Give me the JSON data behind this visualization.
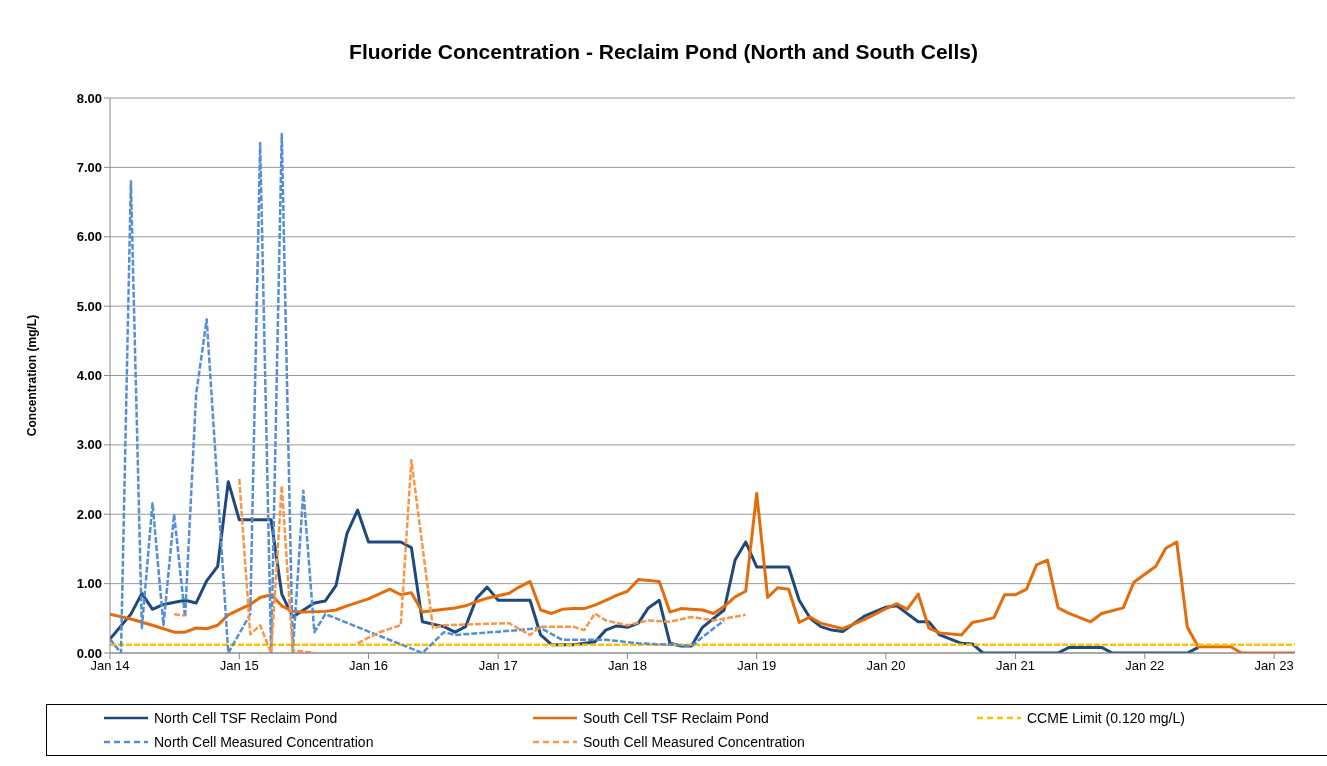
{
  "chart_data": {
    "type": "line",
    "title": "Fluoride Concentration - Reclaim Pond (North and South Cells)",
    "ylabel": "Concentration (mg/L)",
    "xlim": [
      "2014-01",
      "2023-03"
    ],
    "xticks": [
      {
        "value": "2014-01",
        "label": "Jan 14"
      },
      {
        "value": "2015-01",
        "label": "Jan 15"
      },
      {
        "value": "2016-01",
        "label": "Jan 16"
      },
      {
        "value": "2017-01",
        "label": "Jan 17"
      },
      {
        "value": "2018-01",
        "label": "Jan 18"
      },
      {
        "value": "2019-01",
        "label": "Jan 19"
      },
      {
        "value": "2020-01",
        "label": "Jan 20"
      },
      {
        "value": "2021-01",
        "label": "Jan 21"
      },
      {
        "value": "2022-01",
        "label": "Jan 22"
      },
      {
        "value": "2023-01",
        "label": "Jan 23"
      }
    ],
    "ylim": [
      0,
      8
    ],
    "yticks": [
      {
        "value": 0,
        "label": "0.00"
      },
      {
        "value": 1,
        "label": "1.00"
      },
      {
        "value": 2,
        "label": "2.00"
      },
      {
        "value": 3,
        "label": "3.00"
      },
      {
        "value": 4,
        "label": "4.00"
      },
      {
        "value": 5,
        "label": "5.00"
      },
      {
        "value": 6,
        "label": "6.00"
      },
      {
        "value": 7,
        "label": "7.00"
      },
      {
        "value": 8,
        "label": "8.00"
      }
    ],
    "grid": "y",
    "legend": "bottom",
    "marker": "none",
    "series": [
      {
        "name": "North Cell TSF Reclaim Pond",
        "color": "#1f497d",
        "line_style": "solid",
        "x": [
          "2014-01",
          "2014-03",
          "2014-04",
          "2014-05",
          "2014-06",
          "2014-08",
          "2014-09",
          "2014-10",
          "2014-11",
          "2014-12",
          "2015-01",
          "2015-04",
          "2015-05",
          "2015-06",
          "2015-08",
          "2015-09",
          "2015-10",
          "2015-11",
          "2015-12",
          "2016-01",
          "2016-04",
          "2016-05",
          "2016-06",
          "2016-08",
          "2016-09",
          "2016-10",
          "2016-11",
          "2016-12",
          "2017-01",
          "2017-04",
          "2017-05",
          "2017-06",
          "2017-08",
          "2017-10",
          "2017-11",
          "2017-12",
          "2018-01",
          "2018-02",
          "2018-03",
          "2018-04",
          "2018-05",
          "2018-06",
          "2018-07",
          "2018-08",
          "2018-10",
          "2018-11",
          "2018-12",
          "2019-01",
          "2019-04",
          "2019-05",
          "2019-06",
          "2019-07",
          "2019-08",
          "2019-09",
          "2019-11",
          "2020-01",
          "2020-02",
          "2020-04",
          "2020-05",
          "2020-06",
          "2020-08",
          "2020-09",
          "2020-10",
          "2021-05",
          "2021-06",
          "2021-09",
          "2021-10",
          "2022-05",
          "2022-06"
        ],
        "values": [
          0.2,
          0.56,
          0.86,
          0.63,
          0.7,
          0.76,
          0.72,
          1.04,
          1.25,
          2.47,
          1.92,
          1.92,
          0.85,
          0.52,
          0.72,
          0.75,
          0.97,
          1.72,
          2.06,
          1.6,
          1.6,
          1.52,
          0.45,
          0.38,
          0.3,
          0.38,
          0.79,
          0.95,
          0.76,
          0.76,
          0.26,
          0.12,
          0.12,
          0.16,
          0.33,
          0.39,
          0.37,
          0.43,
          0.65,
          0.76,
          0.14,
          0.1,
          0.1,
          0.37,
          0.62,
          1.34,
          1.6,
          1.24,
          1.24,
          0.76,
          0.5,
          0.38,
          0.33,
          0.31,
          0.53,
          0.66,
          0.68,
          0.45,
          0.45,
          0.26,
          0.14,
          0.13,
          0,
          0,
          0.08,
          0.08,
          0,
          0,
          0.08
        ]
      },
      {
        "name": "South Cell TSF Reclaim Pond",
        "color": "#e46c0a",
        "line_style": "solid",
        "x": [
          "2014-01",
          "2014-03",
          "2014-05",
          "2014-07",
          "2014-08",
          "2014-09",
          "2014-10",
          "2014-11",
          "2014-12",
          "2015-02",
          "2015-03",
          "2015-04",
          "2015-05",
          "2015-06",
          "2015-07",
          "2015-09",
          "2015-10",
          "2015-11",
          "2016-01",
          "2016-03",
          "2016-04",
          "2016-05",
          "2016-06",
          "2016-08",
          "2016-09",
          "2016-10",
          "2016-11",
          "2016-12",
          "2017-02",
          "2017-03",
          "2017-04",
          "2017-05",
          "2017-06",
          "2017-07",
          "2017-08",
          "2017-09",
          "2017-10",
          "2017-11",
          "2017-12",
          "2018-01",
          "2018-02",
          "2018-04",
          "2018-05",
          "2018-06",
          "2018-08",
          "2018-09",
          "2018-10",
          "2018-11",
          "2018-12",
          "2019-01",
          "2019-02",
          "2019-03",
          "2019-04",
          "2019-05",
          "2019-06",
          "2019-07",
          "2019-09",
          "2019-11",
          "2020-01",
          "2020-02",
          "2020-03",
          "2020-04",
          "2020-05",
          "2020-06",
          "2020-08",
          "2020-09",
          "2020-10",
          "2020-11",
          "2020-12",
          "2021-01",
          "2021-02",
          "2021-03",
          "2021-04",
          "2021-05",
          "2021-06",
          "2021-08",
          "2021-09",
          "2021-11",
          "2021-12",
          "2022-02",
          "2022-03",
          "2022-04",
          "2022-05",
          "2022-06",
          "2022-09",
          "2022-10",
          "2023-03"
        ],
        "values": [
          0.56,
          0.49,
          0.4,
          0.3,
          0.3,
          0.36,
          0.35,
          0.4,
          0.55,
          0.7,
          0.8,
          0.84,
          0.68,
          0.6,
          0.59,
          0.6,
          0.62,
          0.68,
          0.78,
          0.92,
          0.84,
          0.87,
          0.59,
          0.63,
          0.65,
          0.68,
          0.74,
          0.79,
          0.86,
          0.95,
          1.03,
          0.62,
          0.57,
          0.63,
          0.64,
          0.64,
          0.69,
          0.76,
          0.83,
          0.89,
          1.06,
          1.03,
          0.59,
          0.64,
          0.62,
          0.57,
          0.67,
          0.81,
          0.89,
          2.3,
          0.8,
          0.94,
          0.92,
          0.44,
          0.52,
          0.43,
          0.35,
          0.48,
          0.64,
          0.71,
          0.63,
          0.85,
          0.36,
          0.29,
          0.26,
          0.44,
          0.47,
          0.51,
          0.84,
          0.84,
          0.92,
          1.27,
          1.34,
          0.65,
          0.57,
          0.45,
          0.57,
          0.65,
          1.02,
          1.25,
          1.51,
          1.6,
          0.37,
          0.09,
          0.09,
          0,
          0
        ]
      },
      {
        "name": "CCME Limit (0.120 mg/L)",
        "color": "#ffc000",
        "line_style": "dashed",
        "x": [
          "2014-01",
          "2023-03"
        ],
        "values": [
          0.12,
          0.12
        ]
      },
      {
        "name": "North Cell Measured Concentration",
        "color": "#558ed5",
        "line_style": "dashed",
        "x": [
          "2014-01",
          "2014-02",
          "2014-03",
          "2014-04",
          "2014-05",
          "2014-06",
          "2014-07",
          "2014-08",
          "2014-09",
          "2014-10",
          "2014-12",
          "2015-02",
          "2015-03",
          "2015-04",
          "2015-05",
          "2015-06",
          "2015-07",
          "2015-08",
          "2015-09",
          "2016-06",
          "2016-08",
          "2016-09",
          "2017-03",
          "2017-05",
          "2017-07",
          "2017-11",
          "2018-02",
          "2018-05",
          "2018-07",
          "2018-08",
          "2018-10"
        ],
        "values": [
          0.2,
          0,
          6.8,
          0.36,
          2.16,
          0.4,
          2,
          0.52,
          3.72,
          4.81,
          0,
          0.56,
          7.35,
          0,
          7.48,
          0,
          2.34,
          0.3,
          0.56,
          0,
          0.3,
          0.26,
          0.33,
          0.36,
          0.19,
          0.19,
          0.14,
          0.12,
          0.1,
          0.23,
          0.47
        ]
      },
      {
        "name": "South Cell Measured Concentration",
        "color": "#f79646",
        "line_style": "dashed",
        "x": [
          "2014-07",
          "2014-08",
          "2014-11",
          "2015-01",
          "2015-02",
          "2015-03",
          "2015-04",
          "2015-05",
          "2015-06",
          "2015-08",
          "2015-10",
          "2015-12",
          "2016-02",
          "2016-04",
          "2016-05",
          "2016-07",
          "2016-08",
          "2016-12",
          "2017-02",
          "2017-04",
          "2017-05",
          "2017-08",
          "2017-09",
          "2017-10",
          "2017-11",
          "2018-01",
          "2018-03",
          "2018-05",
          "2018-07",
          "2018-09",
          "2018-12"
        ],
        "values": [
          0.56,
          0.54,
          null,
          2.51,
          0.27,
          0.4,
          0,
          2.41,
          0.04,
          0,
          null,
          0.14,
          0.3,
          0.4,
          2.78,
          0.36,
          0.4,
          0.42,
          0.43,
          0.26,
          0.38,
          0.38,
          0.33,
          0.57,
          0.47,
          0.4,
          0.47,
          0.45,
          0.52,
          0.47,
          0.55
        ]
      }
    ]
  }
}
